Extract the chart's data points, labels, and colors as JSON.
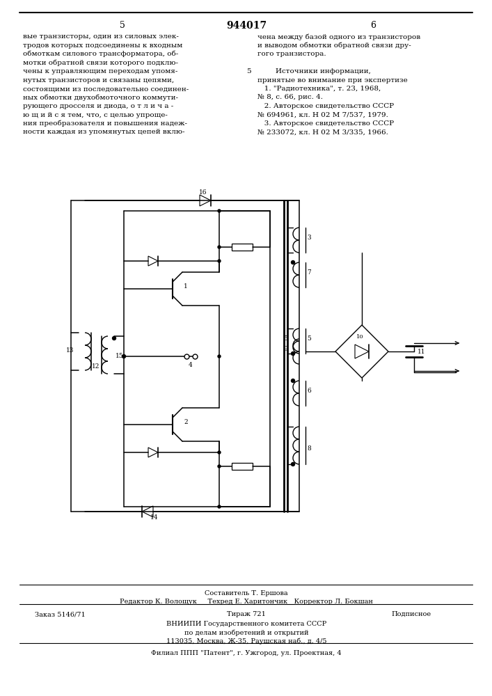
{
  "page_number_center": "944017",
  "page_left": "5",
  "page_right": "6",
  "text_left_col": [
    "вые транзисторы, один из силовых элек-",
    "тродов которых подсоединены к входным",
    "обмоткам силового трансформатора, об-",
    "мотки обратной связи которого подклю-",
    "чены к управляющим переходам упомя-",
    "нутых транзисторов и связаны цепями,",
    "состоящими из последовательно соединен-",
    "ных обмотки двухобмоточного коммути-",
    "рующего дросселя и диода, о т л и ч а -",
    "ю щ и й с я тем, что, с целью упроще-",
    "ния преобразователя и повышения надеж-",
    "ности каждая из упомянутых цепей вклю-"
  ],
  "text_right_col": [
    "чена между базой одного из транзисторов",
    "и выводом обмотки обратной связи дру-",
    "гого транзистора.",
    "",
    "        Источники информации,",
    "принятые во внимание при экспертизе",
    "   1. \"Радиотехника\", т. 23, 1968,",
    "№ 8, с. 66, рис. 4.",
    "   2. Авторское свидетельство СССР",
    "№ 694961, кл. Н 02 М 7/537, 1979.",
    "   3. Авторское свидетельство СССР",
    "№ 233072, кл. Н 02 М 3/335, 1966."
  ],
  "footer_line1": "Составитель Т. Ершова",
  "footer_line2": "Редактор К. Волощук     Техред Е. Харитончик   Корректор Л. Бокшан",
  "footer_order": "Заказ 5146/71",
  "footer_tirazh": "Тираж 721",
  "footer_podp": "Подписное",
  "footer_org": "ВНИИПИ Государственного комитета СССР",
  "footer_dept": "по делам изобретений и открытий",
  "footer_addr": "113035, Москва, Ж-35, Раушская наб., д. 4/5",
  "footer_patent": "Филиал ППП \"Патент\", г. Ужгород, ул. Проектная, 4",
  "bg_color": "#ffffff",
  "text_color": "#000000",
  "font_size_main": 7.5,
  "font_size_header": 9.0
}
